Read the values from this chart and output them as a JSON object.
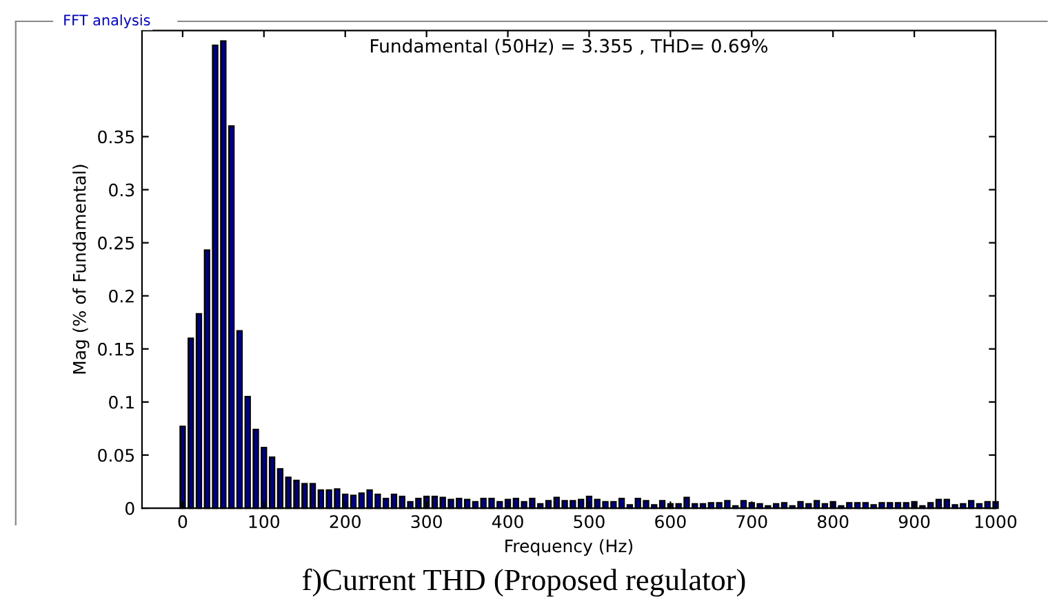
{
  "chart_data": {
    "type": "bar",
    "title": "Fundamental (50Hz) = 3.355 , THD= 0.69%",
    "xlabel": "Frequency (Hz)",
    "ylabel": "Mag (% of Fundamental)",
    "annotations": [
      "FFT analysis",
      "f)Current THD (Proposed regulator)"
    ],
    "x": [
      0,
      10,
      20,
      30,
      40,
      50,
      60,
      70,
      80,
      90,
      100,
      110,
      120,
      130,
      140,
      150,
      160,
      170,
      180,
      190,
      200,
      210,
      220,
      230,
      240,
      250,
      260,
      270,
      280,
      290,
      300,
      310,
      320,
      330,
      340,
      350,
      360,
      370,
      380,
      390,
      400,
      410,
      420,
      430,
      440,
      450,
      460,
      470,
      480,
      490,
      500,
      510,
      520,
      530,
      540,
      550,
      560,
      570,
      580,
      590,
      600,
      610,
      620,
      630,
      640,
      650,
      660,
      670,
      680,
      690,
      700,
      710,
      720,
      730,
      740,
      750,
      760,
      770,
      780,
      790,
      800,
      810,
      820,
      830,
      840,
      850,
      860,
      870,
      880,
      890,
      900,
      910,
      920,
      930,
      940,
      950,
      960,
      970,
      980,
      990,
      1000
    ],
    "series": [
      {
        "color": "#000080",
        "values": [
          0.077,
          0.16,
          0.183,
          0.243,
          0.436,
          0.44,
          0.36,
          0.167,
          0.105,
          0.074,
          0.057,
          0.048,
          0.037,
          0.029,
          0.026,
          0.023,
          0.023,
          0.017,
          0.017,
          0.018,
          0.013,
          0.012,
          0.014,
          0.017,
          0.013,
          0.009,
          0.013,
          0.011,
          0.006,
          0.009,
          0.011,
          0.011,
          0.01,
          0.008,
          0.009,
          0.008,
          0.006,
          0.009,
          0.009,
          0.006,
          0.008,
          0.009,
          0.006,
          0.009,
          0.004,
          0.007,
          0.01,
          0.007,
          0.007,
          0.008,
          0.011,
          0.008,
          0.006,
          0.006,
          0.009,
          0.003,
          0.009,
          0.007,
          0.003,
          0.007,
          0.004,
          0.004,
          0.01,
          0.004,
          0.004,
          0.005,
          0.005,
          0.007,
          0.002,
          0.007,
          0.005,
          0.004,
          0.002,
          0.004,
          0.005,
          0.002,
          0.006,
          0.004,
          0.007,
          0.004,
          0.006,
          0.002,
          0.005,
          0.005,
          0.005,
          0.003,
          0.005,
          0.005,
          0.005,
          0.005,
          0.006,
          0.002,
          0.005,
          0.008,
          0.008,
          0.003,
          0.004,
          0.007,
          0.004,
          0.006,
          0.006
        ]
      }
    ],
    "xlim": [
      -50,
      1000
    ],
    "xticks": [
      0,
      100,
      200,
      300,
      400,
      500,
      600,
      700,
      800,
      900,
      1000
    ],
    "ylim": [
      0,
      0.45
    ],
    "yticks": [
      0,
      0.05,
      0.1,
      0.15,
      0.2,
      0.25,
      0.3,
      0.35
    ],
    "grid": false,
    "legend": false
  }
}
